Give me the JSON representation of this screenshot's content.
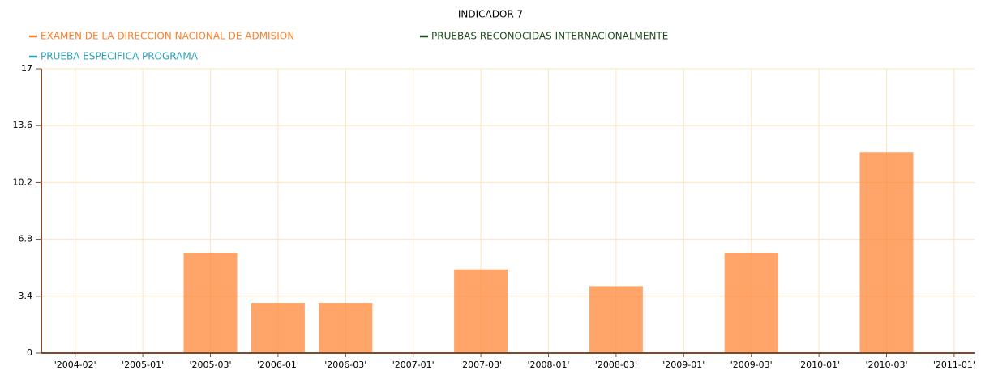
{
  "chart_data": {
    "type": "bar",
    "title": "INDICADOR 7",
    "categories": [
      "'2004-02'",
      "'2005-01'",
      "'2005-03'",
      "'2006-01'",
      "'2006-03'",
      "'2007-01'",
      "'2007-03'",
      "'2008-01'",
      "'2008-03'",
      "'2009-01'",
      "'2009-03'",
      "'2010-01'",
      "'2010-03'",
      "'2011-01'"
    ],
    "series": [
      {
        "name": "EXAMEN DE LA DIRECCION NACIONAL DE ADMISION",
        "color": "#ff7f2a",
        "values": [
          0,
          0,
          6,
          3,
          3,
          0,
          5,
          0,
          4,
          0,
          6,
          0,
          12,
          0
        ]
      },
      {
        "name": "PRUEBAS RECONOCIDAS INTERNACIONALMENTE",
        "color": "#1e4d1e",
        "values": [
          null,
          null,
          null,
          null,
          null,
          null,
          null,
          null,
          null,
          null,
          null,
          null,
          null,
          null
        ]
      },
      {
        "name": "PRUEBA ESPECIFICA PROGRAMA",
        "color": "#2aa0b8",
        "values": [
          null,
          null,
          null,
          null,
          null,
          null,
          null,
          null,
          null,
          null,
          null,
          null,
          null,
          null
        ]
      }
    ],
    "ylim": [
      0,
      17
    ],
    "yticks": [
      0,
      3.4,
      6.8,
      10.2,
      13.6,
      17
    ],
    "grid": true
  }
}
